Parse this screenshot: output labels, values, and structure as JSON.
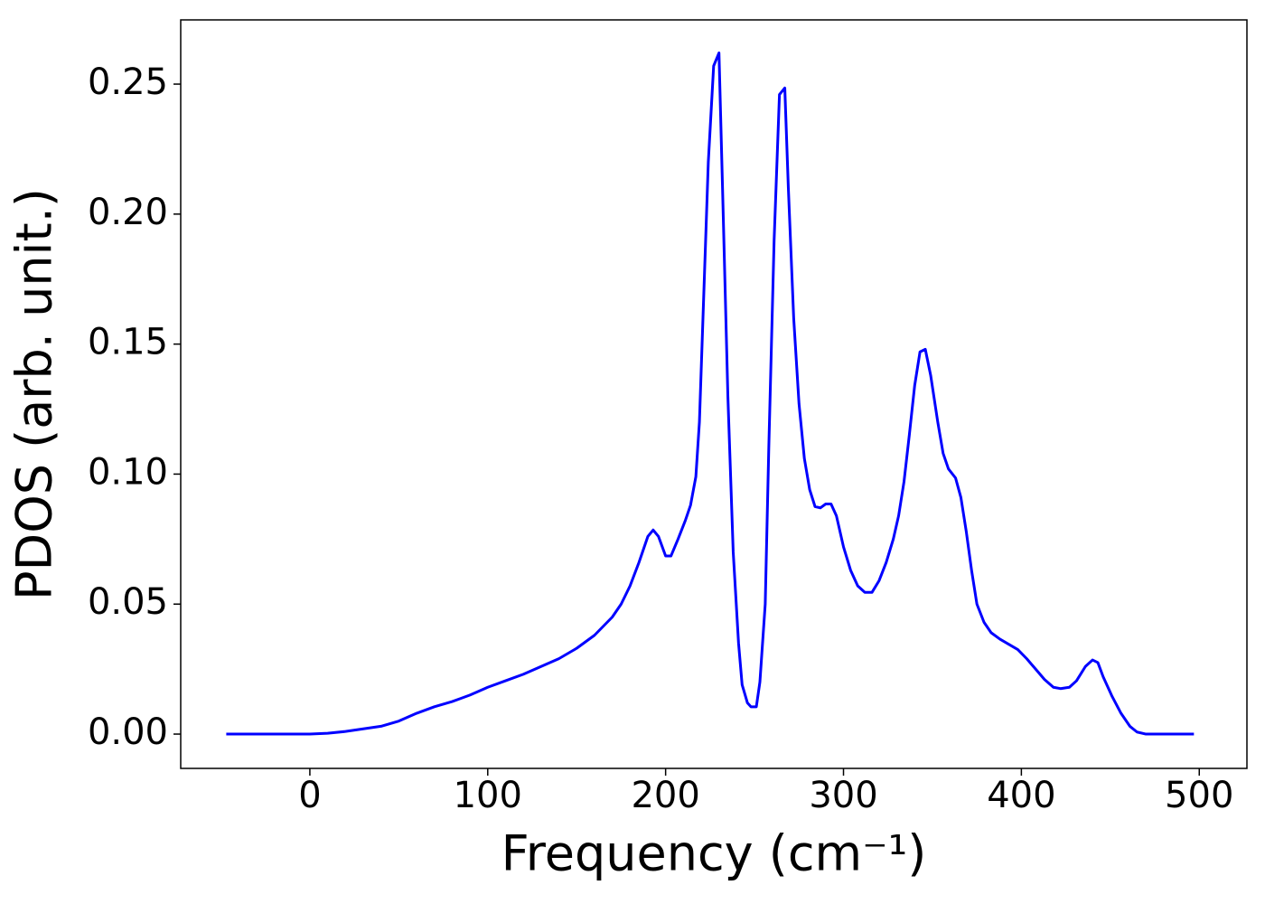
{
  "chart_data": {
    "type": "line",
    "xlabel": "Frequency (cm⁻¹)",
    "ylabel": "PDOS (arb. unit.)",
    "x": [
      -47,
      0,
      10,
      20,
      30,
      40,
      50,
      60,
      70,
      80,
      90,
      100,
      110,
      120,
      130,
      140,
      150,
      160,
      170,
      175,
      180,
      185,
      190,
      193,
      196,
      200,
      203,
      207,
      211,
      214,
      217,
      219,
      221,
      224,
      227,
      230,
      232,
      235,
      238,
      241,
      243,
      246,
      248,
      251,
      253,
      256,
      258,
      261,
      264,
      267,
      269,
      272,
      275,
      278,
      281,
      284,
      287,
      290,
      293,
      296,
      300,
      304,
      308,
      312,
      316,
      320,
      324,
      328,
      331,
      334,
      337,
      340,
      343,
      346,
      349,
      353,
      356,
      359,
      363,
      366,
      369,
      372,
      375,
      379,
      383,
      388,
      393,
      398,
      403,
      408,
      413,
      418,
      422,
      427,
      431,
      436,
      440,
      443,
      446,
      451,
      456,
      461,
      465,
      470,
      497
    ],
    "series": [
      {
        "color": "#0000ff",
        "values": [
          0,
          0,
          0.0003,
          0.001,
          0.002,
          0.003,
          0.005,
          0.008,
          0.0105,
          0.0125,
          0.015,
          0.018,
          0.0205,
          0.023,
          0.026,
          0.029,
          0.033,
          0.038,
          0.045,
          0.05,
          0.057,
          0.066,
          0.076,
          0.0785,
          0.076,
          0.0685,
          0.0685,
          0.075,
          0.082,
          0.088,
          0.099,
          0.12,
          0.16,
          0.22,
          0.257,
          0.262,
          0.21,
          0.13,
          0.07,
          0.035,
          0.019,
          0.012,
          0.0105,
          0.0105,
          0.02,
          0.05,
          0.11,
          0.19,
          0.246,
          0.2485,
          0.21,
          0.16,
          0.127,
          0.106,
          0.094,
          0.0875,
          0.087,
          0.0885,
          0.0885,
          0.084,
          0.072,
          0.063,
          0.057,
          0.0545,
          0.0545,
          0.059,
          0.066,
          0.075,
          0.084,
          0.097,
          0.115,
          0.134,
          0.147,
          0.148,
          0.138,
          0.12,
          0.108,
          0.102,
          0.0985,
          0.091,
          0.078,
          0.063,
          0.05,
          0.043,
          0.039,
          0.0365,
          0.0345,
          0.0325,
          0.029,
          0.025,
          0.021,
          0.018,
          0.0175,
          0.018,
          0.0205,
          0.026,
          0.0285,
          0.0275,
          0.022,
          0.0145,
          0.008,
          0.003,
          0.0008,
          0,
          0
        ]
      }
    ],
    "xlim": [
      -72.6,
      526.8
    ],
    "ylim": [
      -0.0132,
      0.2747
    ],
    "xticks": [
      0,
      100,
      200,
      300,
      400,
      500
    ],
    "yticks": [
      {
        "value": 0,
        "label": "0.00"
      },
      0.05,
      {
        "value": 0.1,
        "label": "0.10"
      },
      0.15,
      {
        "value": 0.2,
        "label": "0.20"
      },
      0.25
    ]
  }
}
